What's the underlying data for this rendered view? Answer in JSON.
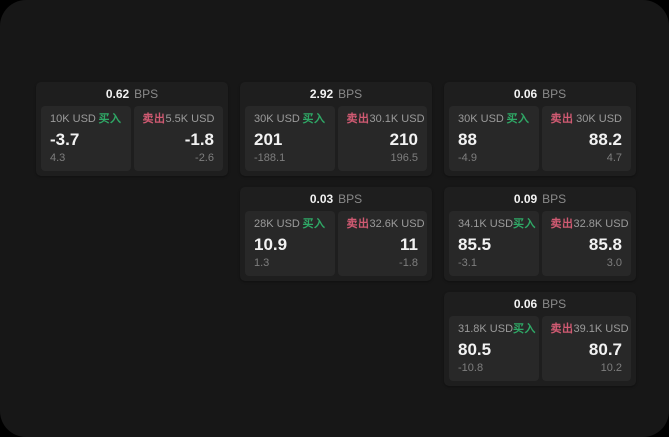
{
  "strings": {
    "bps_unit": "BPS",
    "buy_side": "买入",
    "sell_side": "卖出"
  },
  "colors": {
    "background": "#171717",
    "card_bg": "#1e1e1e",
    "panel_bg": "#282828",
    "buy_green": "#2fa866",
    "sell_red": "#d05a72",
    "text_primary": "#f2f2f2",
    "text_muted": "#8a8a8a"
  },
  "cards": [
    {
      "bps": "0.62",
      "buy": {
        "size": "10K USD",
        "price": "-3.7",
        "sub": "4.3"
      },
      "sell": {
        "size": "5.5K USD",
        "price": "-1.8",
        "sub": "-2.6"
      }
    },
    {
      "bps": "2.92",
      "buy": {
        "size": "30K USD",
        "price": "201",
        "sub": "-188.1"
      },
      "sell": {
        "size": "30.1K USD",
        "price": "210",
        "sub": "196.5"
      }
    },
    {
      "bps": "0.06",
      "buy": {
        "size": "30K USD",
        "price": "88",
        "sub": "-4.9"
      },
      "sell": {
        "size": "30K USD",
        "price": "88.2",
        "sub": "4.7"
      }
    },
    {
      "bps": "0.03",
      "buy": {
        "size": "28K USD",
        "price": "10.9",
        "sub": "1.3"
      },
      "sell": {
        "size": "32.6K USD",
        "price": "11",
        "sub": "-1.8"
      }
    },
    {
      "bps": "0.09",
      "buy": {
        "size": "34.1K USD",
        "price": "85.5",
        "sub": "-3.1"
      },
      "sell": {
        "size": "32.8K USD",
        "price": "85.8",
        "sub": "3.0"
      }
    },
    {
      "bps": "0.06",
      "buy": {
        "size": "31.8K USD",
        "price": "80.5",
        "sub": "-10.8"
      },
      "sell": {
        "size": "39.1K USD",
        "price": "80.7",
        "sub": "10.2"
      }
    }
  ]
}
